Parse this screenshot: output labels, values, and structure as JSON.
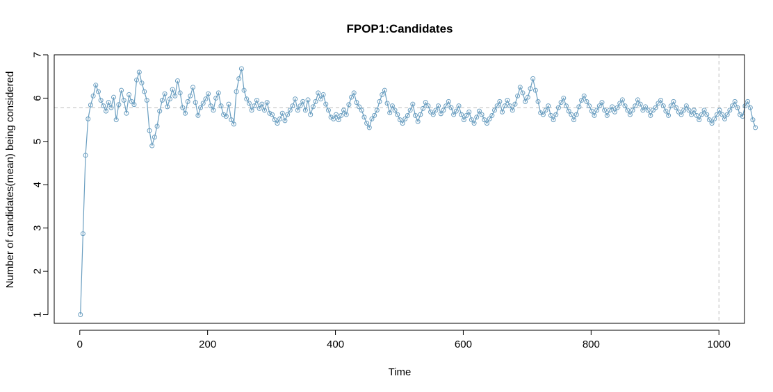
{
  "chart_data": {
    "type": "line",
    "title": "FPOP1:Candidates",
    "xlabel": "Time",
    "ylabel": "Number of candidates(mean) being considered",
    "xlim": [
      -40,
      1040
    ],
    "ylim": [
      0.8,
      7.0
    ],
    "x_ticks": [
      0,
      200,
      400,
      600,
      800,
      1000
    ],
    "y_ticks": [
      1,
      2,
      3,
      4,
      5,
      6,
      7
    ],
    "x_tick_labels": [
      "0",
      "200",
      "400",
      "600",
      "800",
      "1000"
    ],
    "y_tick_labels": [
      "1",
      "2",
      "3",
      "4",
      "5",
      "6",
      "7"
    ],
    "grid": false,
    "series_color": "#6a9ec0",
    "reference_color": "#bdbdbd",
    "reference_lines": {
      "h": 5.78,
      "v": 1000
    },
    "markers": "open-circle",
    "series": [
      {
        "x_start": 1,
        "x_step": 4,
        "values": [
          1.0,
          2.87,
          4.68,
          5.52,
          5.84,
          6.05,
          6.3,
          6.15,
          5.95,
          5.82,
          5.7,
          5.9,
          5.78,
          6.02,
          5.5,
          5.85,
          6.18,
          5.95,
          5.65,
          6.08,
          5.92,
          5.85,
          6.42,
          6.6,
          6.35,
          6.15,
          5.95,
          5.25,
          4.9,
          5.1,
          5.35,
          5.7,
          5.95,
          6.1,
          5.8,
          5.98,
          6.2,
          6.05,
          6.4,
          6.12,
          5.78,
          5.65,
          5.92,
          6.05,
          6.25,
          5.9,
          5.6,
          5.78,
          5.88,
          5.98,
          6.1,
          5.82,
          5.72,
          6.0,
          6.12,
          5.82,
          5.62,
          5.58,
          5.86,
          5.5,
          5.4,
          6.15,
          6.45,
          6.68,
          6.18,
          5.98,
          5.88,
          5.72,
          5.82,
          5.95,
          5.76,
          5.86,
          5.72,
          5.9,
          5.65,
          5.62,
          5.5,
          5.42,
          5.52,
          5.65,
          5.48,
          5.62,
          5.72,
          5.82,
          5.98,
          5.72,
          5.82,
          5.92,
          5.72,
          5.96,
          5.62,
          5.8,
          5.92,
          6.12,
          5.98,
          6.08,
          5.86,
          5.72,
          5.56,
          5.52,
          5.62,
          5.5,
          5.6,
          5.72,
          5.62,
          5.85,
          6.02,
          6.12,
          5.9,
          5.8,
          5.72,
          5.56,
          5.42,
          5.32,
          5.52,
          5.6,
          5.72,
          5.92,
          6.08,
          6.18,
          5.88,
          5.66,
          5.82,
          5.72,
          5.62,
          5.5,
          5.42,
          5.52,
          5.6,
          5.72,
          5.86,
          5.6,
          5.46,
          5.62,
          5.76,
          5.9,
          5.82,
          5.68,
          5.62,
          5.72,
          5.82,
          5.64,
          5.72,
          5.82,
          5.92,
          5.78,
          5.62,
          5.7,
          5.82,
          5.62,
          5.5,
          5.6,
          5.68,
          5.5,
          5.42,
          5.56,
          5.7,
          5.62,
          5.5,
          5.42,
          5.52,
          5.6,
          5.72,
          5.82,
          5.92,
          5.68,
          5.82,
          5.95,
          5.82,
          5.72,
          5.86,
          6.05,
          6.25,
          6.12,
          5.92,
          6.02,
          6.22,
          6.45,
          6.18,
          5.92,
          5.66,
          5.62,
          5.72,
          5.82,
          5.6,
          5.5,
          5.62,
          5.78,
          5.9,
          6.0,
          5.82,
          5.7,
          5.62,
          5.5,
          5.62,
          5.8,
          5.95,
          6.05,
          5.92,
          5.82,
          5.7,
          5.6,
          5.72,
          5.82,
          5.9,
          5.72,
          5.6,
          5.72,
          5.8,
          5.68,
          5.78,
          5.88,
          5.96,
          5.82,
          5.72,
          5.62,
          5.72,
          5.82,
          5.96,
          5.86,
          5.72,
          5.8,
          5.72,
          5.6,
          5.72,
          5.78,
          5.88,
          5.95,
          5.82,
          5.7,
          5.6,
          5.82,
          5.92,
          5.78,
          5.68,
          5.62,
          5.72,
          5.82,
          5.72,
          5.62,
          5.72,
          5.6,
          5.5,
          5.62,
          5.72,
          5.62,
          5.5,
          5.42,
          5.52,
          5.62,
          5.72,
          5.62,
          5.52,
          5.62,
          5.72,
          5.82,
          5.92,
          5.78,
          5.62,
          5.58,
          5.82,
          5.92,
          5.78,
          5.5,
          5.32
        ]
      }
    ]
  }
}
